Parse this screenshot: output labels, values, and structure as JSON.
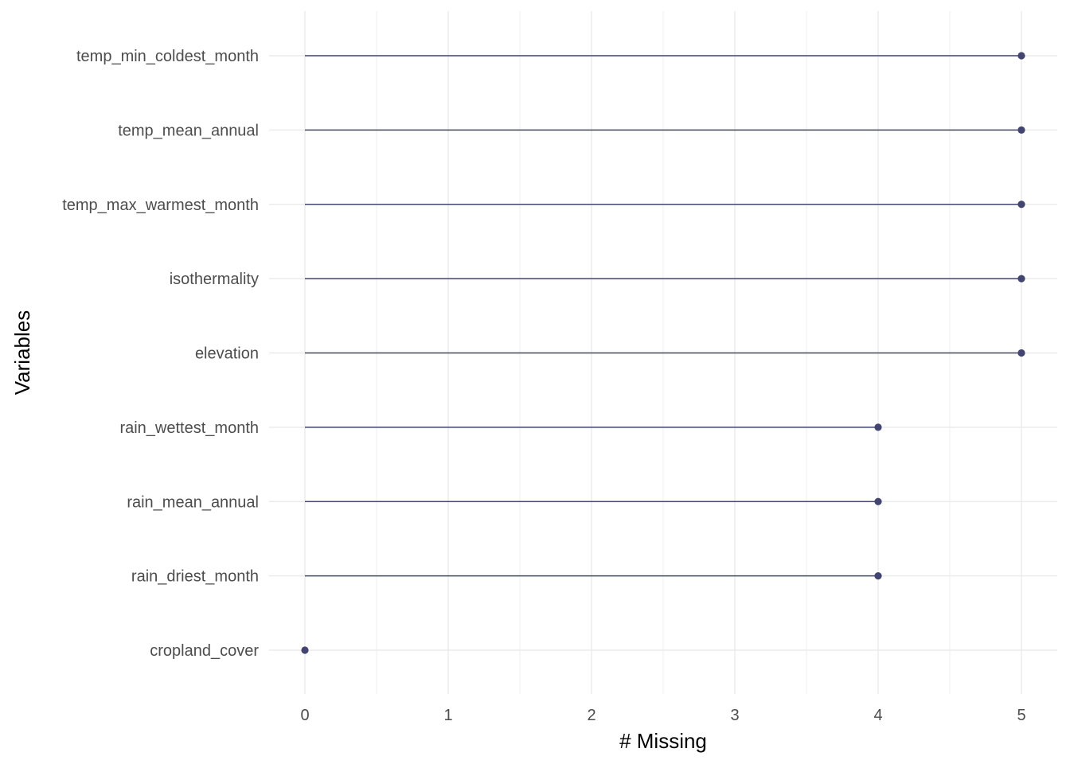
{
  "chart_data": {
    "type": "lollipop",
    "xlabel": "# Missing",
    "ylabel": "Variables",
    "xlim": [
      -0.25,
      5.25
    ],
    "xticks": [
      0,
      1,
      2,
      3,
      4,
      5
    ],
    "grid": true,
    "colors": {
      "mark": "#414570",
      "grid": "#ebebeb"
    },
    "categories": [
      "temp_min_coldest_month",
      "temp_mean_annual",
      "temp_max_warmest_month",
      "isothermality",
      "elevation",
      "rain_wettest_month",
      "rain_mean_annual",
      "rain_driest_month",
      "cropland_cover"
    ],
    "values": [
      5,
      5,
      5,
      5,
      5,
      4,
      4,
      4,
      0
    ]
  }
}
